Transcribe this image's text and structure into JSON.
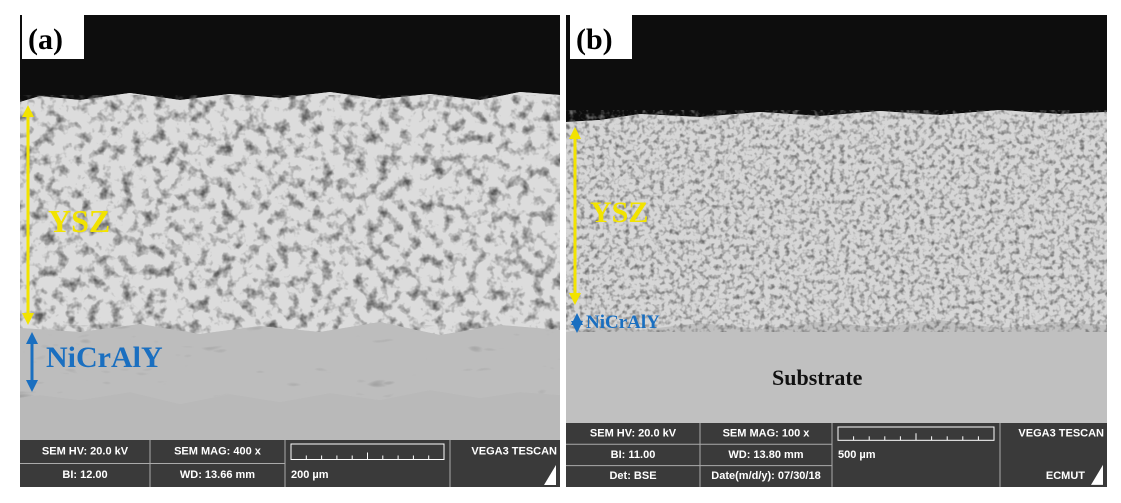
{
  "panels": [
    {
      "label": "(a)",
      "annotations": [
        {
          "text": "YSZ",
          "color": "#f2e300"
        },
        {
          "text": "NiCrAlY",
          "color": "#1a6fc0"
        }
      ],
      "info": [
        [
          "SEM HV: 20.0 kV",
          "SEM MAG: 400 x",
          "VEGA3 TESCAN"
        ],
        [
          "BI: 12.00",
          "WD: 13.66 mm",
          "200 µm"
        ]
      ]
    },
    {
      "label": "(b)",
      "annotations": [
        {
          "text": "YSZ",
          "color": "#f2e300"
        },
        {
          "text": "NiCrAlY",
          "color": "#1a6fc0"
        },
        {
          "text": "Substrate",
          "color": "#111111"
        }
      ],
      "info": [
        [
          "SEM HV: 20.0 kV",
          "SEM MAG: 100 x",
          "VEGA3 TESCAN"
        ],
        [
          "BI: 11.00",
          "WD: 13.80 mm",
          "500 µm"
        ],
        [
          "Det: BSE",
          "Date(m/d/y): 07/30/18",
          "ECMUT"
        ]
      ]
    }
  ]
}
